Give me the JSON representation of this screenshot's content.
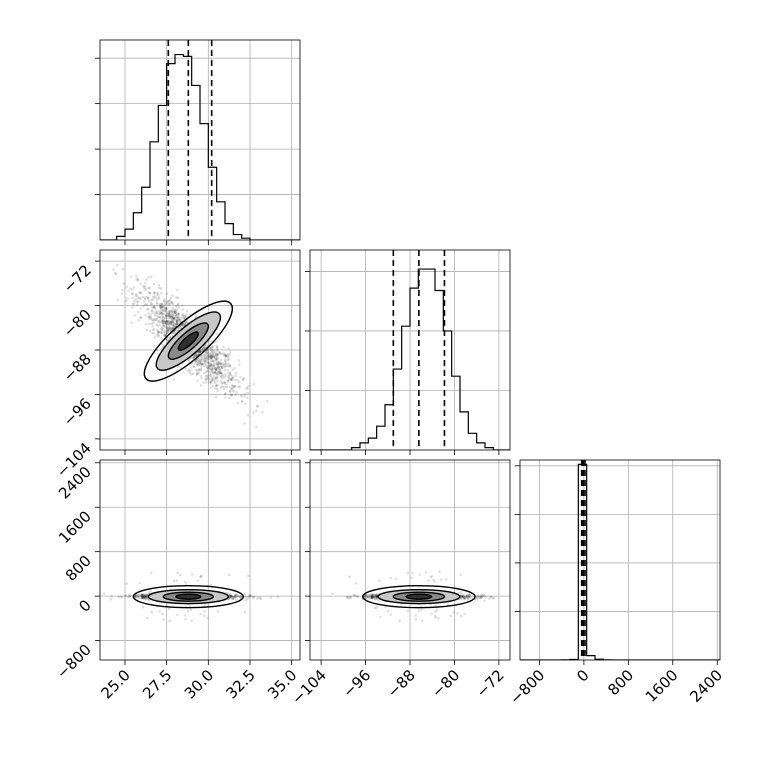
{
  "chart_data": {
    "type": "corner",
    "grid": true,
    "params": [
      {
        "range": [
          23.5,
          35.5
        ],
        "ticks": [
          25.0,
          27.5,
          30.0,
          32.5,
          35.0
        ],
        "tick_labels": [
          "25.0",
          "27.5",
          "30.0",
          "32.5",
          "35.0"
        ]
      },
      {
        "range": [
          -106,
          -70
        ],
        "ticks": [
          -104,
          -96,
          -88,
          -80,
          -72
        ],
        "tick_labels": [
          "−104",
          "−96",
          "−88",
          "−80",
          "−72"
        ]
      },
      {
        "range": [
          -1150,
          2450
        ],
        "ticks": [
          -800,
          0,
          800,
          1600,
          2400
        ],
        "tick_labels": [
          "−800",
          "0",
          "800",
          "1600",
          "2400"
        ]
      }
    ],
    "histograms": [
      {
        "param": 0,
        "bin_edges": [
          23.5,
          24.0,
          24.5,
          25.0,
          25.5,
          26.0,
          26.5,
          27.0,
          27.5,
          28.0,
          28.5,
          29.0,
          29.5,
          30.0,
          30.5,
          31.0,
          31.5,
          32.0,
          32.5,
          33.0,
          33.5,
          34.0,
          34.5,
          35.0,
          35.5
        ],
        "counts": [
          0,
          0,
          2,
          6,
          15,
          29,
          54,
          74,
          97,
          102,
          101,
          85,
          64,
          40,
          21,
          9,
          3,
          1,
          0,
          0,
          0,
          0,
          0,
          0
        ],
        "quantiles": [
          27.6,
          28.8,
          30.2
        ],
        "ymax": 110
      },
      {
        "param": 1,
        "bin_edges": [
          -106.0,
          -104.5,
          -103.0,
          -101.5,
          -100.0,
          -98.5,
          -97.0,
          -95.5,
          -94.0,
          -92.5,
          -91.0,
          -89.5,
          -88.0,
          -86.5,
          -85.0,
          -83.5,
          -82.0,
          -80.5,
          -79.0,
          -77.5,
          -76.0,
          -74.5,
          -73.0,
          -71.5,
          -70.0
        ],
        "counts": [
          0,
          0,
          0,
          0,
          0,
          1,
          3,
          5,
          10,
          19,
          34,
          52,
          68,
          76,
          76,
          67,
          50,
          31,
          16,
          7,
          3,
          1,
          0,
          0
        ],
        "quantiles": [
          -91.0,
          -86.4,
          -81.8
        ],
        "ymax": 84
      },
      {
        "param": 2,
        "bin_edges": [
          -1150,
          -1000,
          -850,
          -700,
          -550,
          -400,
          -250,
          -100,
          50,
          200,
          350,
          500,
          650,
          800,
          950,
          1100,
          1250,
          1400,
          1550,
          1700,
          1850,
          2000,
          2150,
          2300,
          2450
        ],
        "counts": [
          0,
          0,
          0,
          0,
          0,
          2,
          6,
          2015,
          45,
          8,
          1,
          0,
          0,
          0,
          0,
          0,
          0,
          0,
          0,
          0,
          0,
          0,
          0,
          0
        ],
        "quantiles": [
          -40,
          -10,
          20
        ],
        "ymax": 2060
      }
    ],
    "density_panels": [
      {
        "x_param": 0,
        "y_param": 1,
        "center": [
          28.8,
          -86.4
        ],
        "sd": [
          1.5,
          4.6
        ],
        "correlation": -0.87
      },
      {
        "x_param": 0,
        "y_param": 2,
        "center": [
          28.8,
          -10
        ],
        "sd": [
          1.5,
          25
        ],
        "correlation": 0.0
      },
      {
        "x_param": 1,
        "y_param": 2,
        "center": [
          -86.4,
          -10
        ],
        "sd": [
          4.6,
          25
        ],
        "correlation": 0.0
      }
    ],
    "colors": {
      "line": "#000000",
      "points": "#000000",
      "grid": "#b0b0b0"
    }
  }
}
